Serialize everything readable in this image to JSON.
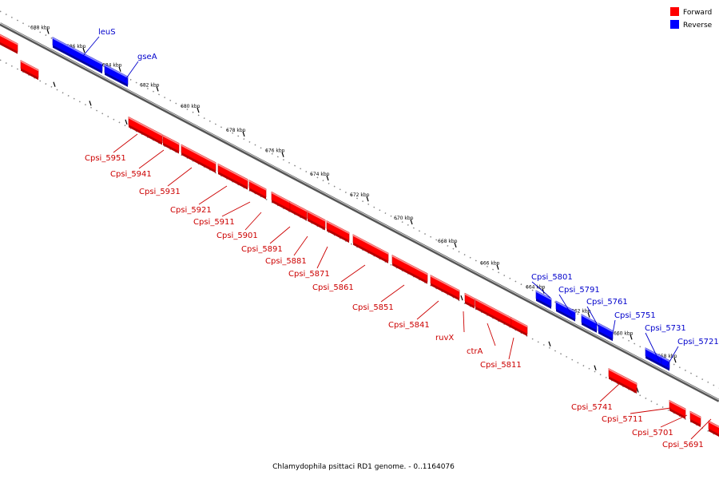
{
  "legend": {
    "forward": {
      "label": "Forward",
      "color": "#ff0000"
    },
    "reverse": {
      "label": "Reverse",
      "color": "#0000ff"
    }
  },
  "caption": "Chlamydophila psittaci RD1 genome. - 0..1164076",
  "ticks": [
    "688 kbp",
    "686 kbp",
    "684 kbp",
    "682 kbp",
    "680 kbp",
    "678 kbp",
    "676 kbp",
    "674 kbp",
    "672 kbp",
    "670 kbp",
    "668 kbp",
    "666 kbp",
    "664 kbp",
    "662 kbp",
    "660 kbp",
    "658 kbp"
  ],
  "genes": [
    {
      "label": "",
      "strand": "forward"
    },
    {
      "label": "",
      "strand": "forward"
    },
    {
      "label": "leuS",
      "strand": "reverse"
    },
    {
      "label": "gseA",
      "strand": "reverse"
    },
    {
      "label": "Cpsi_5951",
      "strand": "forward"
    },
    {
      "label": "Cpsi_5941",
      "strand": "forward"
    },
    {
      "label": "Cpsi_5931",
      "strand": "forward"
    },
    {
      "label": "Cpsi_5921",
      "strand": "forward"
    },
    {
      "label": "Cpsi_5911",
      "strand": "forward"
    },
    {
      "label": "Cpsi_5901",
      "strand": "forward"
    },
    {
      "label": "Cpsi_5891",
      "strand": "forward"
    },
    {
      "label": "Cpsi_5881",
      "strand": "forward"
    },
    {
      "label": "Cpsi_5871",
      "strand": "forward"
    },
    {
      "label": "Cpsi_5861",
      "strand": "forward"
    },
    {
      "label": "Cpsi_5851",
      "strand": "forward"
    },
    {
      "label": "Cpsi_5841",
      "strand": "forward"
    },
    {
      "label": "ruvX",
      "strand": "forward"
    },
    {
      "label": "ctrA",
      "strand": "forward"
    },
    {
      "label": "Cpsi_5811",
      "strand": "forward"
    },
    {
      "label": "Cpsi_5801",
      "strand": "reverse"
    },
    {
      "label": "Cpsi_5791",
      "strand": "reverse"
    },
    {
      "label": "Cpsi_5761",
      "strand": "reverse"
    },
    {
      "label": "Cpsi_5751",
      "strand": "reverse"
    },
    {
      "label": "Cpsi_5741",
      "strand": "forward"
    },
    {
      "label": "Cpsi_5731",
      "strand": "reverse"
    },
    {
      "label": "Cpsi_5721",
      "strand": "reverse"
    },
    {
      "label": "Cpsi_5711",
      "strand": "forward"
    },
    {
      "label": "Cpsi_5701",
      "strand": "forward"
    },
    {
      "label": "Cpsi_5691",
      "strand": "forward"
    }
  ]
}
